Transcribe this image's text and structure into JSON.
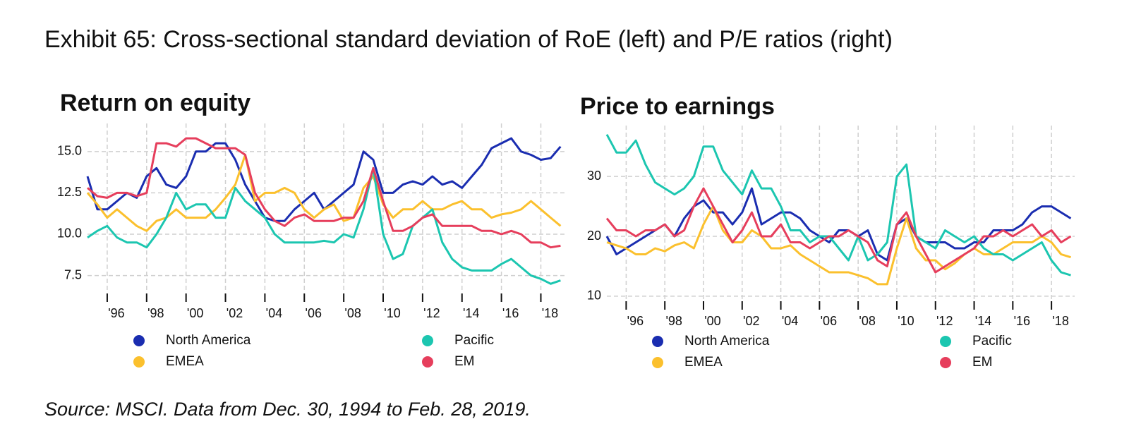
{
  "title": "Exhibit 65: Cross-sectional standard deviation of RoE (left) and P/E ratios (right)",
  "source": "Source: MSCI. Data from Dec. 30, 1994 to Feb. 28, 2019.",
  "chart_data": [
    {
      "type": "line",
      "title": "Return on equity",
      "x": [
        1995,
        1995.5,
        1996,
        1996.5,
        1997,
        1997.5,
        1998,
        1998.5,
        1999,
        1999.5,
        2000,
        2000.5,
        2001,
        2001.5,
        2002,
        2002.5,
        2003,
        2003.5,
        2004,
        2004.5,
        2005,
        2005.5,
        2006,
        2006.5,
        2007,
        2007.5,
        2008,
        2008.5,
        2009,
        2009.5,
        2010,
        2010.5,
        2011,
        2011.5,
        2012,
        2012.5,
        2013,
        2013.5,
        2014,
        2014.5,
        2015,
        2015.5,
        2016,
        2016.5,
        2017,
        2017.5,
        2018,
        2018.5,
        2019
      ],
      "xlim": [
        1995,
        2019.2
      ],
      "xticks": [
        {
          "value": 1996,
          "label": "'96"
        },
        {
          "value": 1998,
          "label": "'98"
        },
        {
          "value": 2000,
          "label": "'00"
        },
        {
          "value": 2002,
          "label": "'02"
        },
        {
          "value": 2004,
          "label": "'04"
        },
        {
          "value": 2006,
          "label": "'06"
        },
        {
          "value": 2008,
          "label": "'08"
        },
        {
          "value": 2010,
          "label": "'10"
        },
        {
          "value": 2012,
          "label": "'12"
        },
        {
          "value": 2014,
          "label": "'14"
        },
        {
          "value": 2016,
          "label": "'16"
        },
        {
          "value": 2018,
          "label": "'18"
        }
      ],
      "ylim": [
        6.5,
        16.7
      ],
      "yticks": [
        7.5,
        {
          "value": 10,
          "label": "10.0"
        },
        12.5,
        {
          "value": 15,
          "label": "15.0"
        }
      ],
      "grid": true,
      "series": [
        {
          "name": "North America",
          "color": "#1a2db0",
          "values": [
            13.5,
            11.5,
            11.5,
            12,
            12.5,
            12.2,
            13.5,
            14,
            13,
            12.8,
            13.5,
            15,
            15,
            15.5,
            15.5,
            14.5,
            13,
            12,
            11,
            10.8,
            10.8,
            11.5,
            12,
            12.5,
            11.5,
            12,
            12.5,
            13,
            15,
            14.5,
            12.5,
            12.5,
            13,
            13.2,
            13,
            13.5,
            13,
            13.2,
            12.8,
            13.5,
            14.2,
            15.2,
            15.5,
            15.8,
            15,
            14.8,
            14.5,
            14.6,
            15.3
          ]
        },
        {
          "name": "EMEA",
          "color": "#fbc02d",
          "values": [
            12.5,
            11.8,
            11,
            11.5,
            11,
            10.5,
            10.2,
            10.8,
            11,
            11.5,
            11,
            11,
            11,
            11.5,
            12.2,
            13,
            14.8,
            12,
            12.5,
            12.5,
            12.8,
            12.5,
            11.5,
            11,
            11.5,
            11.8,
            10.8,
            11,
            12.8,
            13.5,
            11.8,
            11,
            11.5,
            11.5,
            12,
            11.5,
            11.5,
            11.8,
            12,
            11.5,
            11.5,
            11,
            11.2,
            11.3,
            11.5,
            12,
            11.5,
            11,
            10.5
          ]
        },
        {
          "name": "Pacific",
          "color": "#1cc6b0",
          "values": [
            9.8,
            10.2,
            10.5,
            9.8,
            9.5,
            9.5,
            9.2,
            10,
            11,
            12.5,
            11.5,
            11.8,
            11.8,
            11,
            11,
            12.8,
            12,
            11.5,
            11,
            10,
            9.5,
            9.5,
            9.5,
            9.5,
            9.6,
            9.5,
            10,
            9.8,
            11.5,
            14,
            10,
            8.5,
            8.8,
            10.5,
            11,
            11.5,
            9.5,
            8.5,
            8,
            7.8,
            7.8,
            7.8,
            8.2,
            8.5,
            8,
            7.5,
            7.3,
            7,
            7.2
          ]
        },
        {
          "name": "EM",
          "color": "#e63e5c",
          "values": [
            12.8,
            12.3,
            12.2,
            12.5,
            12.5,
            12.3,
            12.5,
            15.5,
            15.5,
            15.3,
            15.8,
            15.8,
            15.5,
            15.2,
            15.2,
            15.2,
            14.8,
            12.5,
            11.5,
            10.8,
            10.5,
            11,
            11.2,
            10.8,
            10.8,
            10.8,
            11,
            11,
            12,
            14,
            12,
            10.2,
            10.2,
            10.5,
            11,
            11.2,
            10.5,
            10.5,
            10.5,
            10.5,
            10.2,
            10.2,
            10,
            10.2,
            10,
            9.5,
            9.5,
            9.2,
            9.3
          ]
        }
      ]
    },
    {
      "type": "line",
      "title": "Price to earnings",
      "x": [
        1995,
        1995.5,
        1996,
        1996.5,
        1997,
        1997.5,
        1998,
        1998.5,
        1999,
        1999.5,
        2000,
        2000.5,
        2001,
        2001.5,
        2002,
        2002.5,
        2003,
        2003.5,
        2004,
        2004.5,
        2005,
        2005.5,
        2006,
        2006.5,
        2007,
        2007.5,
        2008,
        2008.5,
        2009,
        2009.5,
        2010,
        2010.5,
        2011,
        2011.5,
        2012,
        2012.5,
        2013,
        2013.5,
        2014,
        2014.5,
        2015,
        2015.5,
        2016,
        2016.5,
        2017,
        2017.5,
        2018,
        2018.5,
        2019
      ],
      "xlim": [
        1995,
        2019.2
      ],
      "xticks": [
        {
          "value": 1996,
          "label": "'96"
        },
        {
          "value": 1998,
          "label": "'98"
        },
        {
          "value": 2000,
          "label": "'00"
        },
        {
          "value": 2002,
          "label": "'02"
        },
        {
          "value": 2004,
          "label": "'04"
        },
        {
          "value": 2006,
          "label": "'06"
        },
        {
          "value": 2008,
          "label": "'08"
        },
        {
          "value": 2010,
          "label": "'10"
        },
        {
          "value": 2012,
          "label": "'12"
        },
        {
          "value": 2014,
          "label": "'14"
        },
        {
          "value": 2016,
          "label": "'16"
        },
        {
          "value": 2018,
          "label": "'18"
        }
      ],
      "ylim": [
        9.4,
        38.5
      ],
      "yticks": [
        10,
        20,
        30
      ],
      "grid": true,
      "series": [
        {
          "name": "North America",
          "color": "#1a2db0",
          "values": [
            20,
            17,
            18,
            19,
            20,
            21,
            22,
            20,
            23,
            25,
            26,
            24,
            24,
            22,
            24,
            28,
            22,
            23,
            24,
            24,
            23,
            21,
            20,
            19,
            21,
            21,
            20,
            21,
            17,
            16,
            22,
            23,
            20,
            19,
            19,
            19,
            18,
            18,
            19,
            19,
            21,
            21,
            21,
            22,
            24,
            25,
            25,
            24,
            23
          ]
        },
        {
          "name": "EMEA",
          "color": "#fbc02d",
          "values": [
            19,
            18.5,
            18,
            17,
            17,
            18,
            17.5,
            18.5,
            19,
            18,
            22,
            25,
            21,
            19,
            19,
            21,
            20,
            18,
            18,
            18.5,
            17,
            16,
            15,
            14,
            14,
            14,
            13.5,
            13,
            12,
            12,
            18,
            23,
            18,
            16,
            16,
            14.5,
            15.5,
            17,
            18,
            17,
            17,
            18,
            19,
            19,
            19,
            20,
            19,
            17,
            16.5
          ]
        },
        {
          "name": "Pacific",
          "color": "#1cc6b0",
          "values": [
            37,
            34,
            34,
            36,
            32,
            29,
            28,
            27,
            28,
            30,
            35,
            35,
            31,
            29,
            27,
            31,
            28,
            28,
            25,
            21,
            21,
            19,
            20,
            20,
            18,
            16,
            20,
            16,
            17,
            19,
            30,
            32,
            20,
            19,
            18,
            21,
            20,
            19,
            20,
            18,
            17,
            17,
            16,
            17,
            18,
            19,
            16,
            14,
            13.5
          ]
        },
        {
          "name": "EM",
          "color": "#e63e5c",
          "values": [
            23,
            21,
            21,
            20,
            21,
            21,
            22,
            20,
            21,
            25,
            28,
            25,
            22,
            19,
            21,
            24,
            20,
            20,
            22,
            19,
            19,
            18,
            19,
            20,
            20,
            21,
            20,
            19,
            16,
            15,
            22,
            24,
            20,
            17,
            14,
            15,
            16,
            17,
            18,
            20,
            20,
            21,
            20,
            21,
            22,
            20,
            21,
            19,
            20
          ]
        }
      ]
    }
  ]
}
